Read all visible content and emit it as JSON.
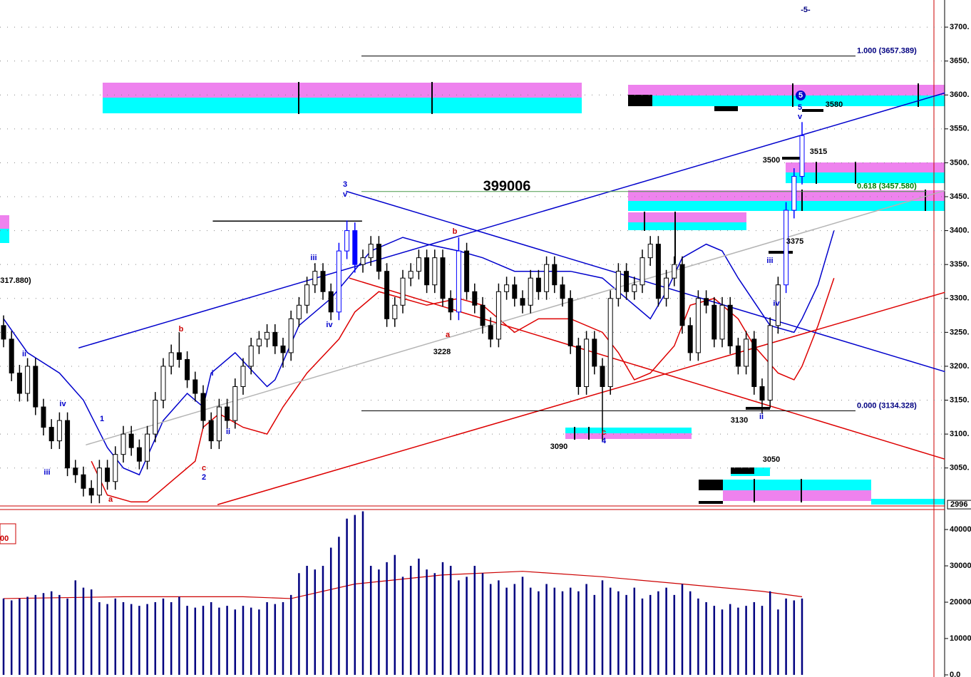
{
  "chart_data": [
    {
      "type": "candlestick",
      "candles": [
        [
          3260,
          3275,
          3228,
          3240
        ],
        [
          3240,
          3252,
          3178,
          3190
        ],
        [
          3190,
          3202,
          3148,
          3160
        ],
        [
          3160,
          3212,
          3148,
          3200
        ],
        [
          3200,
          3212,
          3128,
          3140
        ],
        [
          3140,
          3152,
          3098,
          3110
        ],
        [
          3110,
          3122,
          3078,
          3090
        ],
        [
          3090,
          3132,
          3078,
          3120
        ],
        [
          3120,
          3132,
          3038,
          3050
        ],
        [
          3050,
          3062,
          3028,
          3040
        ],
        [
          3040,
          3052,
          3008,
          3020
        ],
        [
          3020,
          3032,
          2998,
          3010
        ],
        [
          3010,
          3062,
          2998,
          3050
        ],
        [
          3050,
          3062,
          3018,
          3030
        ],
        [
          3030,
          3082,
          3018,
          3070
        ],
        [
          3070,
          3112,
          3058,
          3100
        ],
        [
          3100,
          3112,
          3068,
          3080
        ],
        [
          3080,
          3092,
          3048,
          3060
        ],
        [
          3060,
          3112,
          3048,
          3100
        ],
        [
          3100,
          3162,
          3088,
          3150
        ],
        [
          3150,
          3212,
          3138,
          3200
        ],
        [
          3200,
          3232,
          3188,
          3220
        ],
        [
          3220,
          3250,
          3198,
          3210
        ],
        [
          3210,
          3222,
          3168,
          3180
        ],
        [
          3180,
          3192,
          3148,
          3160
        ],
        [
          3160,
          3172,
          3108,
          3120
        ],
        [
          3120,
          3132,
          3078,
          3090
        ],
        [
          3090,
          3152,
          3078,
          3140
        ],
        [
          3140,
          3152,
          3108,
          3120
        ],
        [
          3120,
          3182,
          3108,
          3170
        ],
        [
          3170,
          3212,
          3158,
          3200
        ],
        [
          3200,
          3242,
          3188,
          3230
        ],
        [
          3230,
          3252,
          3218,
          3240
        ],
        [
          3240,
          3262,
          3228,
          3250
        ],
        [
          3250,
          3262,
          3218,
          3230
        ],
        [
          3230,
          3242,
          3198,
          3220
        ],
        [
          3220,
          3282,
          3208,
          3270
        ],
        [
          3270,
          3302,
          3258,
          3290
        ],
        [
          3290,
          3332,
          3278,
          3320
        ],
        [
          3320,
          3352,
          3308,
          3340
        ],
        [
          3340,
          3352,
          3298,
          3310
        ],
        [
          3310,
          3322,
          3268,
          3280
        ],
        [
          3280,
          3382,
          3268,
          3370
        ],
        [
          3370,
          3415,
          3358,
          3400
        ],
        [
          3400,
          3412,
          3338,
          3350
        ],
        [
          3350,
          3372,
          3338,
          3360
        ],
        [
          3360,
          3392,
          3348,
          3380
        ],
        [
          3380,
          3392,
          3328,
          3340
        ],
        [
          3340,
          3352,
          3258,
          3270
        ],
        [
          3270,
          3302,
          3258,
          3290
        ],
        [
          3290,
          3342,
          3278,
          3330
        ],
        [
          3330,
          3352,
          3318,
          3340
        ],
        [
          3340,
          3372,
          3328,
          3360
        ],
        [
          3360,
          3372,
          3308,
          3320
        ],
        [
          3320,
          3372,
          3308,
          3360
        ],
        [
          3360,
          3372,
          3288,
          3300
        ],
        [
          3300,
          3312,
          3268,
          3280
        ],
        [
          3280,
          3390,
          3268,
          3370
        ],
        [
          3370,
          3382,
          3298,
          3310
        ],
        [
          3310,
          3322,
          3278,
          3290
        ],
        [
          3290,
          3302,
          3248,
          3260
        ],
        [
          3260,
          3272,
          3228,
          3240
        ],
        [
          3240,
          3322,
          3228,
          3310
        ],
        [
          3310,
          3332,
          3298,
          3320
        ],
        [
          3320,
          3332,
          3288,
          3300
        ],
        [
          3300,
          3312,
          3278,
          3290
        ],
        [
          3290,
          3342,
          3278,
          3330
        ],
        [
          3330,
          3342,
          3298,
          3310
        ],
        [
          3310,
          3362,
          3298,
          3350
        ],
        [
          3350,
          3362,
          3308,
          3320
        ],
        [
          3320,
          3332,
          3288,
          3300
        ],
        [
          3300,
          3312,
          3218,
          3230
        ],
        [
          3230,
          3242,
          3158,
          3170
        ],
        [
          3170,
          3252,
          3158,
          3240
        ],
        [
          3240,
          3252,
          3188,
          3200
        ],
        [
          3200,
          3212,
          3090,
          3170
        ],
        [
          3170,
          3312,
          3158,
          3300
        ],
        [
          3300,
          3352,
          3288,
          3340
        ],
        [
          3340,
          3352,
          3298,
          3310
        ],
        [
          3310,
          3332,
          3298,
          3320
        ],
        [
          3320,
          3372,
          3308,
          3360
        ],
        [
          3360,
          3392,
          3348,
          3380
        ],
        [
          3380,
          3392,
          3288,
          3300
        ],
        [
          3300,
          3342,
          3288,
          3330
        ],
        [
          3330,
          3362,
          3318,
          3350
        ],
        [
          3350,
          3362,
          3248,
          3260
        ],
        [
          3260,
          3272,
          3208,
          3220
        ],
        [
          3220,
          3312,
          3208,
          3300
        ],
        [
          3300,
          3312,
          3278,
          3290
        ],
        [
          3290,
          3302,
          3228,
          3240
        ],
        [
          3240,
          3302,
          3228,
          3290
        ],
        [
          3290,
          3302,
          3218,
          3230
        ],
        [
          3230,
          3242,
          3188,
          3200
        ],
        [
          3200,
          3252,
          3188,
          3240
        ],
        [
          3240,
          3252,
          3158,
          3170
        ],
        [
          3170,
          3182,
          3130,
          3150
        ],
        [
          3150,
          3272,
          3138,
          3260
        ],
        [
          3260,
          3332,
          3248,
          3320
        ],
        [
          3320,
          3442,
          3308,
          3430
        ],
        [
          3430,
          3492,
          3418,
          3480
        ],
        [
          3480,
          3560,
          3468,
          3540
        ]
      ],
      "highlight_candles": [
        42,
        43,
        44,
        57,
        98,
        99,
        100
      ],
      "highlight_color": "#0000ff",
      "ylim": [
        2994,
        3740
      ],
      "yticks": [
        {
          "value": 3050,
          "label": "3050."
        },
        {
          "value": 3100,
          "label": "3100."
        },
        {
          "value": 3150,
          "label": "3150."
        },
        {
          "value": 3200,
          "label": "3200."
        },
        {
          "value": 3250,
          "label": "3250."
        },
        {
          "value": 3300,
          "label": "3300."
        },
        {
          "value": 3350,
          "label": "3350."
        },
        {
          "value": 3400,
          "label": "3400."
        },
        {
          "value": 3450,
          "label": "3450."
        },
        {
          "value": 3500,
          "label": "3500."
        },
        {
          "value": 3550,
          "label": "3550."
        },
        {
          "value": 3600,
          "label": "3600."
        },
        {
          "value": 3650,
          "label": "3650."
        },
        {
          "value": 3700,
          "label": "3700."
        }
      ],
      "grid": true,
      "price_marker": 2996,
      "lines": [
        {
          "color": "#0000cc",
          "x": [
            0,
            3,
            7,
            10,
            13,
            15,
            17,
            20,
            23,
            25,
            26,
            29,
            33,
            34,
            37,
            41,
            46,
            50,
            53,
            57,
            60,
            64,
            67,
            71,
            75,
            78,
            81,
            83,
            85,
            88,
            90,
            92,
            96,
            99,
            100,
            102,
            104
          ],
          "values": [
            3270,
            3220,
            3190,
            3150,
            3080,
            3050,
            3040,
            3120,
            3160,
            3140,
            3190,
            3220,
            3170,
            3180,
            3260,
            3300,
            3370,
            3390,
            3380,
            3370,
            3360,
            3340,
            3340,
            3340,
            3330,
            3300,
            3270,
            3310,
            3360,
            3380,
            3370,
            3330,
            3260,
            3250,
            3270,
            3320,
            3400
          ]
        },
        {
          "color": "#dd0000",
          "x": [
            11,
            13,
            16,
            18,
            21,
            24,
            25,
            27,
            30,
            33,
            35,
            38,
            42,
            44,
            47,
            50,
            53,
            57,
            60,
            64,
            67,
            71,
            75,
            77,
            79,
            81,
            84,
            86,
            89,
            92,
            94,
            97,
            99,
            100,
            102,
            104
          ],
          "values": [
            3060,
            3010,
            3000,
            3000,
            3030,
            3060,
            3110,
            3130,
            3110,
            3100,
            3140,
            3190,
            3240,
            3280,
            3310,
            3300,
            3290,
            3300,
            3290,
            3250,
            3270,
            3270,
            3250,
            3220,
            3180,
            3190,
            3230,
            3290,
            3300,
            3270,
            3230,
            3190,
            3180,
            3200,
            3260,
            3330
          ]
        },
        {
          "color": "#b4b4b4",
          "x": [
            10.3,
            117.9
          ],
          "values": [
            3084,
            3459
          ]
        },
        {
          "color": "#0000cc",
          "x": [
            9.4,
            117.9
          ],
          "values": [
            3227,
            3603
          ]
        },
        {
          "color": "#0000cc",
          "x": [
            42.9,
            117.9
          ],
          "values": [
            3458,
            3192
          ]
        },
        {
          "color": "#dd0000",
          "x": [
            26.8,
            117.9
          ],
          "values": [
            2996,
            3309
          ]
        },
        {
          "color": "#dd0000",
          "x": [
            43.3,
            117.9
          ],
          "values": [
            3330,
            3063
          ]
        },
        {
          "color": "#000000",
          "x": [
            26.2,
            44.9
          ],
          "values": [
            3414,
            3414
          ]
        }
      ],
      "fib_levels": [
        {
          "value": 3657.389,
          "label": "1.000 (3657.389)",
          "color": "#000080",
          "line_color": "#000000"
        },
        {
          "value": 3457.58,
          "label": "0.618 (3457.580)",
          "color": "#008000",
          "line_color": "#4a9a4a"
        },
        {
          "value": 3134.328,
          "label": "0.000 (3134.328)",
          "color": "#000080",
          "line_color": "#000000"
        }
      ],
      "annotations": [
        {
          "text": "-5-",
          "color": "#000080"
        },
        {
          "text": "5",
          "color": "#0000cc"
        },
        {
          "text": "v",
          "color": "#0000cc"
        },
        {
          "text": "3580",
          "color": "#000000"
        },
        {
          "text": "3515",
          "color": "#000000"
        },
        {
          "text": "3500",
          "color": "#000000"
        },
        {
          "text": "399006",
          "color": "#000000"
        },
        {
          "text": "3",
          "color": "#0000cc"
        },
        {
          "text": "v",
          "color": "#0000cc"
        },
        {
          "text": "b",
          "color": "#cc0000"
        },
        {
          "text": "3375",
          "color": "#000000"
        },
        {
          "text": "iii",
          "color": "#0000cc"
        },
        {
          "text": "iii",
          "color": "#0000cc"
        },
        {
          "text": "iv",
          "color": "#0000cc"
        },
        {
          "text": "iv",
          "color": "#0000cc"
        },
        {
          "text": "a",
          "color": "#cc0000"
        },
        {
          "text": "3228",
          "color": "#000000"
        },
        {
          "text": "b",
          "color": "#cc0000"
        },
        {
          "text": "ii",
          "color": "#0000cc"
        },
        {
          "text": "iv",
          "color": "#0000cc"
        },
        {
          "text": "1",
          "color": "#0000cc"
        },
        {
          "text": "i",
          "color": "#0000cc"
        },
        {
          "text": "ii",
          "color": "#0000cc"
        },
        {
          "text": "iii",
          "color": "#0000cc"
        },
        {
          "text": "c",
          "color": "#cc0000"
        },
        {
          "text": "2",
          "color": "#0000cc"
        },
        {
          "text": "a",
          "color": "#cc0000"
        },
        {
          "text": "3090",
          "color": "#000000"
        },
        {
          "text": "c",
          "color": "#cc0000"
        },
        {
          "text": "4",
          "color": "#0000cc"
        },
        {
          "text": "3130",
          "color": "#000000"
        },
        {
          "text": "ii",
          "color": "#0000cc"
        },
        {
          "text": "3050",
          "color": "#000000"
        },
        {
          "text": "317.880)",
          "color": "#000000"
        },
        {
          "text": "5",
          "color": "#ffffff"
        }
      ]
    },
    {
      "type": "volume",
      "values": [
        21000,
        20500,
        21000,
        21500,
        22000,
        22500,
        23000,
        22000,
        21000,
        26000,
        24000,
        23500,
        20000,
        19500,
        21000,
        20000,
        19500,
        19000,
        19500,
        20000,
        21000,
        20000,
        21500,
        19000,
        18500,
        19000,
        20000,
        18500,
        19000,
        18000,
        19000,
        18500,
        18000,
        20000,
        19500,
        20000,
        22000,
        28000,
        30000,
        29000,
        30000,
        35000,
        38000,
        43000,
        44000,
        45000,
        30000,
        29000,
        31000,
        33000,
        27000,
        30000,
        32000,
        29000,
        28000,
        31000,
        30000,
        26000,
        27000,
        30000,
        28000,
        25000,
        26000,
        24000,
        25000,
        27000,
        24000,
        23000,
        25000,
        24000,
        23000,
        24000,
        23000,
        25000,
        22000,
        26000,
        24000,
        23000,
        22000,
        24000,
        21000,
        22000,
        23000,
        24000,
        22000,
        25000,
        23000,
        21000,
        20000,
        19000,
        18000,
        19500,
        18500,
        19000,
        20000,
        19000,
        23000,
        18000,
        21000,
        20500,
        21000
      ],
      "color": "#000080",
      "ylim": [
        0,
        45500
      ],
      "yticks": [
        {
          "value": 0,
          "label": "0.0"
        },
        10000,
        20000,
        30000,
        40000
      ],
      "lines": [
        {
          "color": "#cc0000",
          "x": [
            0,
            15,
            30,
            36,
            44,
            55,
            65,
            75,
            85,
            95,
            100
          ],
          "values": [
            21000,
            21500,
            21500,
            21000,
            25000,
            27500,
            28500,
            27000,
            25000,
            23000,
            21500
          ]
        }
      ],
      "label": "00"
    }
  ]
}
